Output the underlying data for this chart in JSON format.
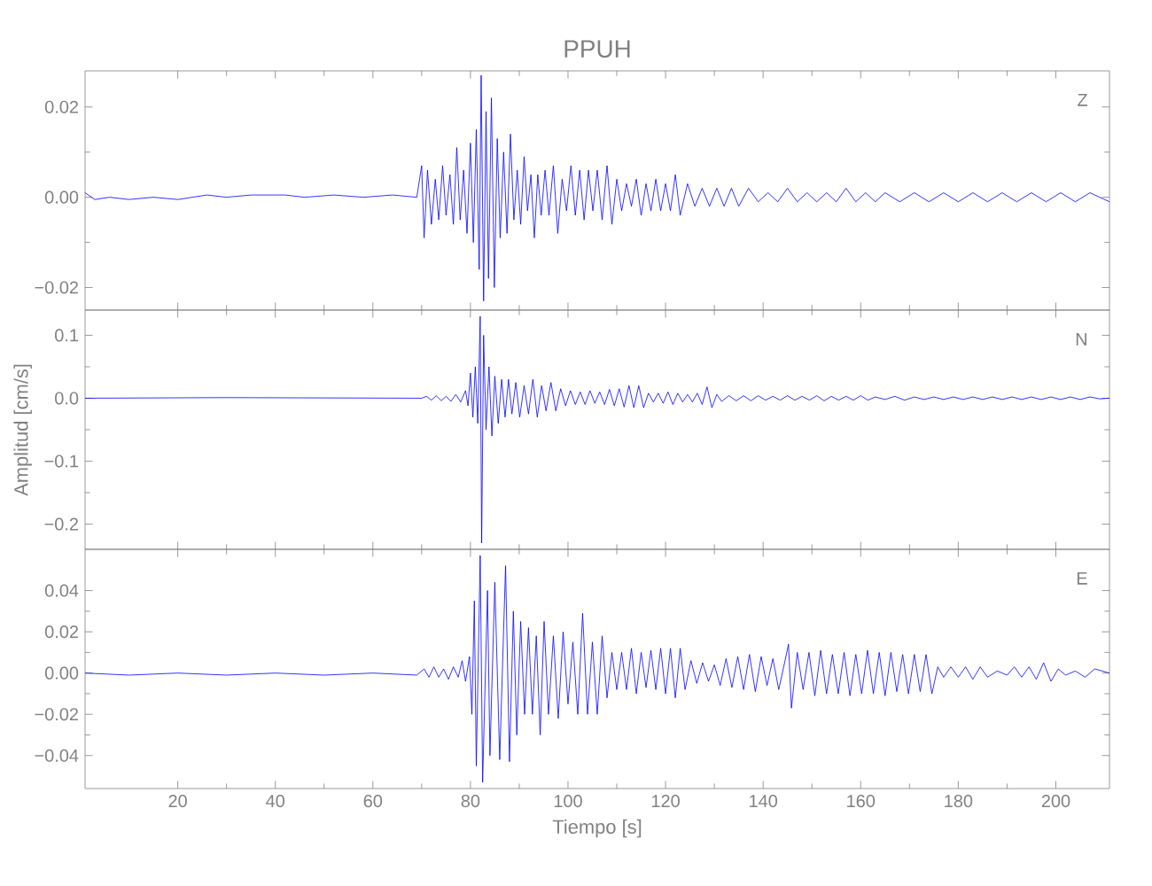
{
  "chart_data": [
    {
      "type": "line",
      "title": "PPUH",
      "annotations": [
        "Z"
      ],
      "xlim": [
        1,
        211
      ],
      "xticks": [
        20,
        40,
        60,
        80,
        100,
        120,
        140,
        160,
        180,
        200
      ],
      "tick_labels": "y",
      "ylim": [
        -0.025,
        0.028
      ],
      "yticks": [
        {
          "value": -0.02,
          "label": "−0.02"
        },
        {
          "value": 0,
          "label": "0.00"
        },
        {
          "value": 0.02,
          "label": "0.02"
        }
      ],
      "series": [
        {
          "color": "#0000ff",
          "x": [
            1,
            3,
            6,
            10,
            15,
            20,
            26,
            30,
            35,
            42,
            46,
            52,
            58,
            64,
            69,
            70,
            70.5,
            71.2,
            72,
            72.8,
            73.5,
            74.3,
            75,
            75.8,
            76.5,
            77.2,
            77.9,
            78.6,
            79.3,
            80,
            80.6,
            81.2,
            81.8,
            82.2,
            82.7,
            83.2,
            83.7,
            84.3,
            84.9,
            85.5,
            86.1,
            86.8,
            87.5,
            88.2,
            88.9,
            89.6,
            90.3,
            91,
            91.7,
            92.4,
            93.1,
            93.8,
            94.5,
            95.3,
            96.1,
            97,
            97.9,
            98.8,
            99.7,
            100.6,
            101.5,
            102.4,
            103.3,
            104.2,
            105.1,
            106,
            107,
            108,
            109,
            110,
            111,
            112,
            113,
            114,
            115,
            116,
            117,
            118,
            119,
            120,
            121,
            122,
            123,
            124.5,
            126,
            127.5,
            129,
            130.5,
            132,
            133.5,
            135,
            137,
            139,
            141,
            143,
            145,
            147,
            149,
            151,
            153,
            155,
            157,
            159,
            161,
            163,
            165,
            168,
            171,
            174,
            177,
            180,
            183,
            186,
            189,
            192,
            195,
            198,
            201,
            204,
            207,
            211
          ],
          "values": [
            0.001,
            -0.0005,
            0,
            -0.0005,
            0,
            -0.0005,
            0.0005,
            0,
            0.0005,
            0.0005,
            0,
            0.0005,
            0,
            0.0005,
            0,
            0.007,
            -0.009,
            0.006,
            -0.006,
            0.004,
            -0.005,
            0.007,
            -0.004,
            0.005,
            -0.006,
            0.011,
            -0.005,
            0.006,
            -0.008,
            0.012,
            -0.01,
            0.015,
            -0.016,
            0.027,
            -0.023,
            0.019,
            -0.018,
            0.022,
            -0.02,
            0.013,
            -0.009,
            0.01,
            -0.008,
            0.014,
            -0.005,
            0.006,
            -0.006,
            0.009,
            -0.003,
            0.005,
            -0.009,
            0.005,
            -0.004,
            0.006,
            -0.004,
            0.007,
            -0.008,
            0.004,
            -0.003,
            0.007,
            -0.004,
            0.006,
            -0.005,
            0.006,
            -0.003,
            0.006,
            -0.005,
            0.007,
            -0.006,
            0.004,
            -0.003,
            0.003,
            -0.002,
            0.004,
            -0.004,
            0.003,
            -0.003,
            0.004,
            -0.003,
            0.003,
            -0.003,
            0.005,
            -0.004,
            0.003,
            -0.002,
            0.002,
            -0.002,
            0.002,
            -0.002,
            0.002,
            -0.002,
            0.002,
            -0.001,
            0.001,
            -0.001,
            0.002,
            -0.001,
            0.001,
            -0.001,
            0.001,
            -0.001,
            0.002,
            -0.001,
            0.001,
            -0.001,
            0.001,
            -0.001,
            0.001,
            -0.001,
            0.001,
            -0.001,
            0.001,
            -0.001,
            0.001,
            -0.001,
            0.001,
            -0.001,
            0.001,
            -0.001,
            0.001,
            -0.001
          ]
        }
      ]
    },
    {
      "type": "line",
      "ylabel": "Amplitud [cm/s]",
      "annotations": [
        "N"
      ],
      "xlim": [
        1,
        211
      ],
      "xticks": [
        20,
        40,
        60,
        80,
        100,
        120,
        140,
        160,
        180,
        200
      ],
      "tick_labels": "y",
      "ylim": [
        -0.24,
        0.14
      ],
      "yticks": [
        {
          "value": -0.2,
          "label": "−0.2"
        },
        {
          "value": -0.1,
          "label": "−0.1"
        },
        {
          "value": 0,
          "label": "0.0"
        },
        {
          "value": 0.1,
          "label": "0.1"
        }
      ],
      "series": [
        {
          "color": "#0000ff",
          "x": [
            1,
            30,
            70,
            71,
            72,
            73,
            74,
            75,
            76,
            77,
            78,
            79,
            79.5,
            80,
            80.5,
            81,
            81.5,
            82,
            82.3,
            82.7,
            83.2,
            83.8,
            84.4,
            85,
            85.7,
            86.4,
            87.1,
            87.8,
            88.5,
            89.3,
            90.1,
            91,
            91.9,
            92.8,
            93.7,
            94.6,
            95.5,
            96.5,
            97.5,
            98.5,
            99.5,
            100.5,
            101.5,
            102.5,
            103.5,
            104.5,
            105.5,
            106.5,
            107.5,
            108.5,
            109.5,
            110.5,
            111.5,
            112.5,
            113.5,
            114.5,
            115.5,
            116.5,
            117.5,
            118.5,
            119.5,
            120.5,
            121.5,
            122.5,
            123.5,
            124.5,
            125.5,
            126.5,
            127.5,
            128.5,
            129.5,
            130.5,
            131.5,
            133,
            134.5,
            136,
            137.5,
            139,
            140.5,
            142,
            143.5,
            145,
            146.5,
            148,
            149.5,
            151,
            152.5,
            154,
            155.5,
            157,
            158.5,
            160,
            161.5,
            163,
            165,
            167,
            169,
            171,
            173,
            175,
            177,
            179,
            181,
            183,
            185,
            187,
            189,
            191,
            193,
            195,
            197,
            199,
            201,
            203,
            205,
            207,
            209,
            211
          ],
          "values": [
            0,
            0.001,
            0,
            0.003,
            -0.003,
            0.004,
            -0.004,
            0.003,
            -0.005,
            0.006,
            -0.006,
            0.012,
            -0.012,
            0.04,
            -0.03,
            0.05,
            -0.04,
            0.13,
            -0.23,
            0.1,
            -0.05,
            0.05,
            -0.06,
            0.035,
            -0.04,
            0.03,
            -0.03,
            0.03,
            -0.025,
            0.025,
            -0.03,
            0.02,
            -0.025,
            0.03,
            -0.03,
            0.02,
            -0.02,
            0.025,
            -0.02,
            0.015,
            -0.012,
            0.012,
            -0.01,
            0.01,
            -0.01,
            0.012,
            -0.008,
            0.01,
            -0.01,
            0.014,
            -0.012,
            0.015,
            -0.014,
            0.02,
            -0.015,
            0.02,
            -0.015,
            0.008,
            -0.006,
            0.008,
            -0.008,
            0.01,
            -0.01,
            0.008,
            -0.006,
            0.006,
            -0.006,
            0.008,
            -0.01,
            0.018,
            -0.015,
            0.006,
            -0.005,
            0.004,
            -0.004,
            0.004,
            -0.004,
            0.004,
            -0.003,
            0.003,
            -0.003,
            0.004,
            -0.003,
            0.003,
            -0.003,
            0.004,
            -0.004,
            0.003,
            -0.003,
            0.003,
            -0.003,
            0.004,
            -0.003,
            0.002,
            -0.002,
            0.003,
            -0.003,
            0.002,
            -0.002,
            0.002,
            -0.002,
            0.002,
            -0.002,
            0.002,
            -0.002,
            0.002,
            -0.002,
            0.002,
            -0.002,
            0.002,
            -0.002,
            0.002,
            -0.002,
            0.002,
            -0.002,
            0.002,
            -0.001,
            0
          ]
        }
      ]
    },
    {
      "type": "line",
      "xlabel": "Tiempo [s]",
      "annotations": [
        "E"
      ],
      "xlim": [
        1,
        211
      ],
      "xticks": [
        20,
        40,
        60,
        80,
        100,
        120,
        140,
        160,
        180,
        200
      ],
      "ylim": [
        -0.056,
        0.06
      ],
      "yticks": [
        {
          "value": -0.04,
          "label": "−0.04"
        },
        {
          "value": -0.02,
          "label": "−0.02"
        },
        {
          "value": 0,
          "label": "0.00"
        },
        {
          "value": 0.02,
          "label": "0.02"
        },
        {
          "value": 0.04,
          "label": "0.04"
        }
      ],
      "series": [
        {
          "color": "#0000ff",
          "x": [
            1,
            10,
            20,
            30,
            40,
            50,
            60,
            69,
            70.5,
            71.5,
            72.5,
            73.5,
            74.5,
            75.5,
            76.5,
            77.5,
            78.3,
            79,
            79.8,
            80.3,
            80.8,
            81.2,
            82,
            82.5,
            83.5,
            84,
            85,
            86,
            87.2,
            88,
            88.8,
            89.5,
            90.3,
            91.1,
            91.9,
            92.7,
            93.5,
            94.3,
            95.1,
            96,
            97,
            98,
            99,
            100,
            101,
            102,
            103,
            104,
            105,
            106,
            107,
            108,
            109,
            110,
            111,
            112,
            113,
            114,
            115,
            116,
            117,
            118,
            119,
            120,
            121,
            122,
            123,
            124,
            125.2,
            126.4,
            127.6,
            128.8,
            130,
            131.2,
            132.4,
            133.6,
            134.8,
            136,
            137.2,
            138.4,
            139.6,
            140.8,
            142,
            143.2,
            144.4,
            145.2,
            145.8,
            147,
            148.2,
            149.4,
            150.6,
            151.8,
            153,
            154.2,
            155.4,
            156.6,
            157.8,
            159,
            160.2,
            161.4,
            162.6,
            163.8,
            165,
            166.2,
            167.4,
            168.6,
            169.8,
            171,
            172.2,
            173.4,
            174.6,
            175.8,
            177,
            178.5,
            180,
            181.5,
            183,
            184.5,
            186,
            188,
            190,
            191.5,
            193,
            194.5,
            196,
            197.5,
            199,
            200.5,
            202,
            204,
            206,
            208,
            211
          ],
          "values": [
            0,
            -0.001,
            0,
            -0.001,
            0,
            -0.001,
            0,
            -0.001,
            0.002,
            -0.002,
            0.003,
            -0.002,
            0.002,
            -0.003,
            0.003,
            -0.002,
            0.006,
            -0.004,
            0.008,
            -0.02,
            0.035,
            -0.045,
            0.057,
            -0.053,
            0.04,
            -0.04,
            0.044,
            -0.042,
            0.052,
            -0.043,
            0.03,
            -0.03,
            0.025,
            -0.02,
            0.022,
            -0.02,
            0.018,
            -0.03,
            0.025,
            -0.02,
            0.018,
            -0.022,
            0.02,
            -0.015,
            0.015,
            -0.02,
            0.029,
            -0.02,
            0.015,
            -0.02,
            0.018,
            -0.012,
            0.01,
            -0.008,
            0.01,
            -0.008,
            0.012,
            -0.01,
            0.01,
            -0.007,
            0.011,
            -0.008,
            0.012,
            -0.01,
            0.012,
            -0.012,
            0.012,
            -0.008,
            0.006,
            -0.005,
            0.005,
            -0.004,
            0.004,
            -0.006,
            0.007,
            -0.007,
            0.008,
            -0.008,
            0.009,
            -0.009,
            0.008,
            -0.006,
            0.007,
            -0.008,
            0.005,
            0.014,
            -0.017,
            0.01,
            -0.008,
            0.01,
            -0.011,
            0.011,
            -0.01,
            0.009,
            -0.01,
            0.01,
            -0.011,
            0.009,
            -0.01,
            0.011,
            -0.01,
            0.01,
            -0.011,
            0.01,
            -0.009,
            0.009,
            -0.01,
            0.009,
            -0.009,
            0.009,
            -0.01,
            0.003,
            -0.002,
            0.003,
            -0.002,
            0.003,
            -0.003,
            0.003,
            -0.002,
            0.001,
            -0.001,
            0.003,
            -0.002,
            0.003,
            -0.003,
            0.005,
            -0.004,
            0.002,
            -0.001,
            0.001,
            -0.002,
            0.002,
            0
          ]
        }
      ]
    }
  ]
}
